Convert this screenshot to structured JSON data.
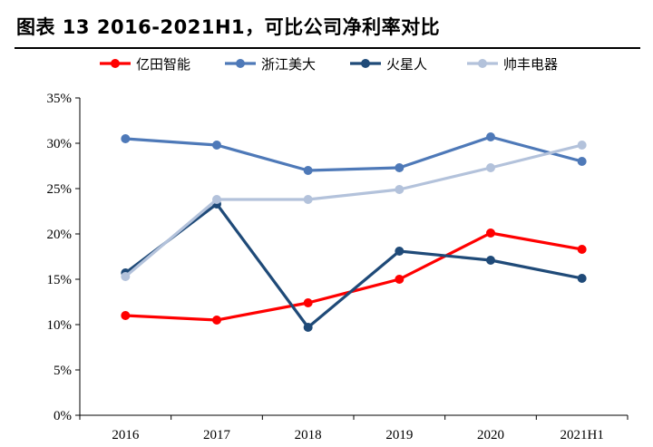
{
  "title": "图表 13 2016-2021H1，可比公司净利率对比",
  "chart_data": {
    "type": "line",
    "categories": [
      "2016",
      "2017",
      "2018",
      "2019",
      "2020",
      "2021H1"
    ],
    "y_ticks": [
      "0%",
      "5%",
      "10%",
      "15%",
      "20%",
      "25%",
      "30%",
      "35%"
    ],
    "ylim": [
      0,
      35
    ],
    "legend_position": "top",
    "series": [
      {
        "name": "亿田智能",
        "color": "#ff0000",
        "values": [
          11.0,
          10.5,
          12.4,
          15.0,
          20.1,
          18.3
        ]
      },
      {
        "name": "浙江美大",
        "color": "#4e79b8",
        "values": [
          30.5,
          29.8,
          27.0,
          27.3,
          30.7,
          28.0
        ]
      },
      {
        "name": "火星人",
        "color": "#1f4a78",
        "values": [
          15.7,
          23.3,
          9.7,
          18.1,
          17.1,
          15.1
        ]
      },
      {
        "name": "帅丰电器",
        "color": "#b3c2db",
        "values": [
          15.3,
          23.8,
          23.8,
          24.9,
          27.3,
          29.8
        ]
      }
    ]
  }
}
